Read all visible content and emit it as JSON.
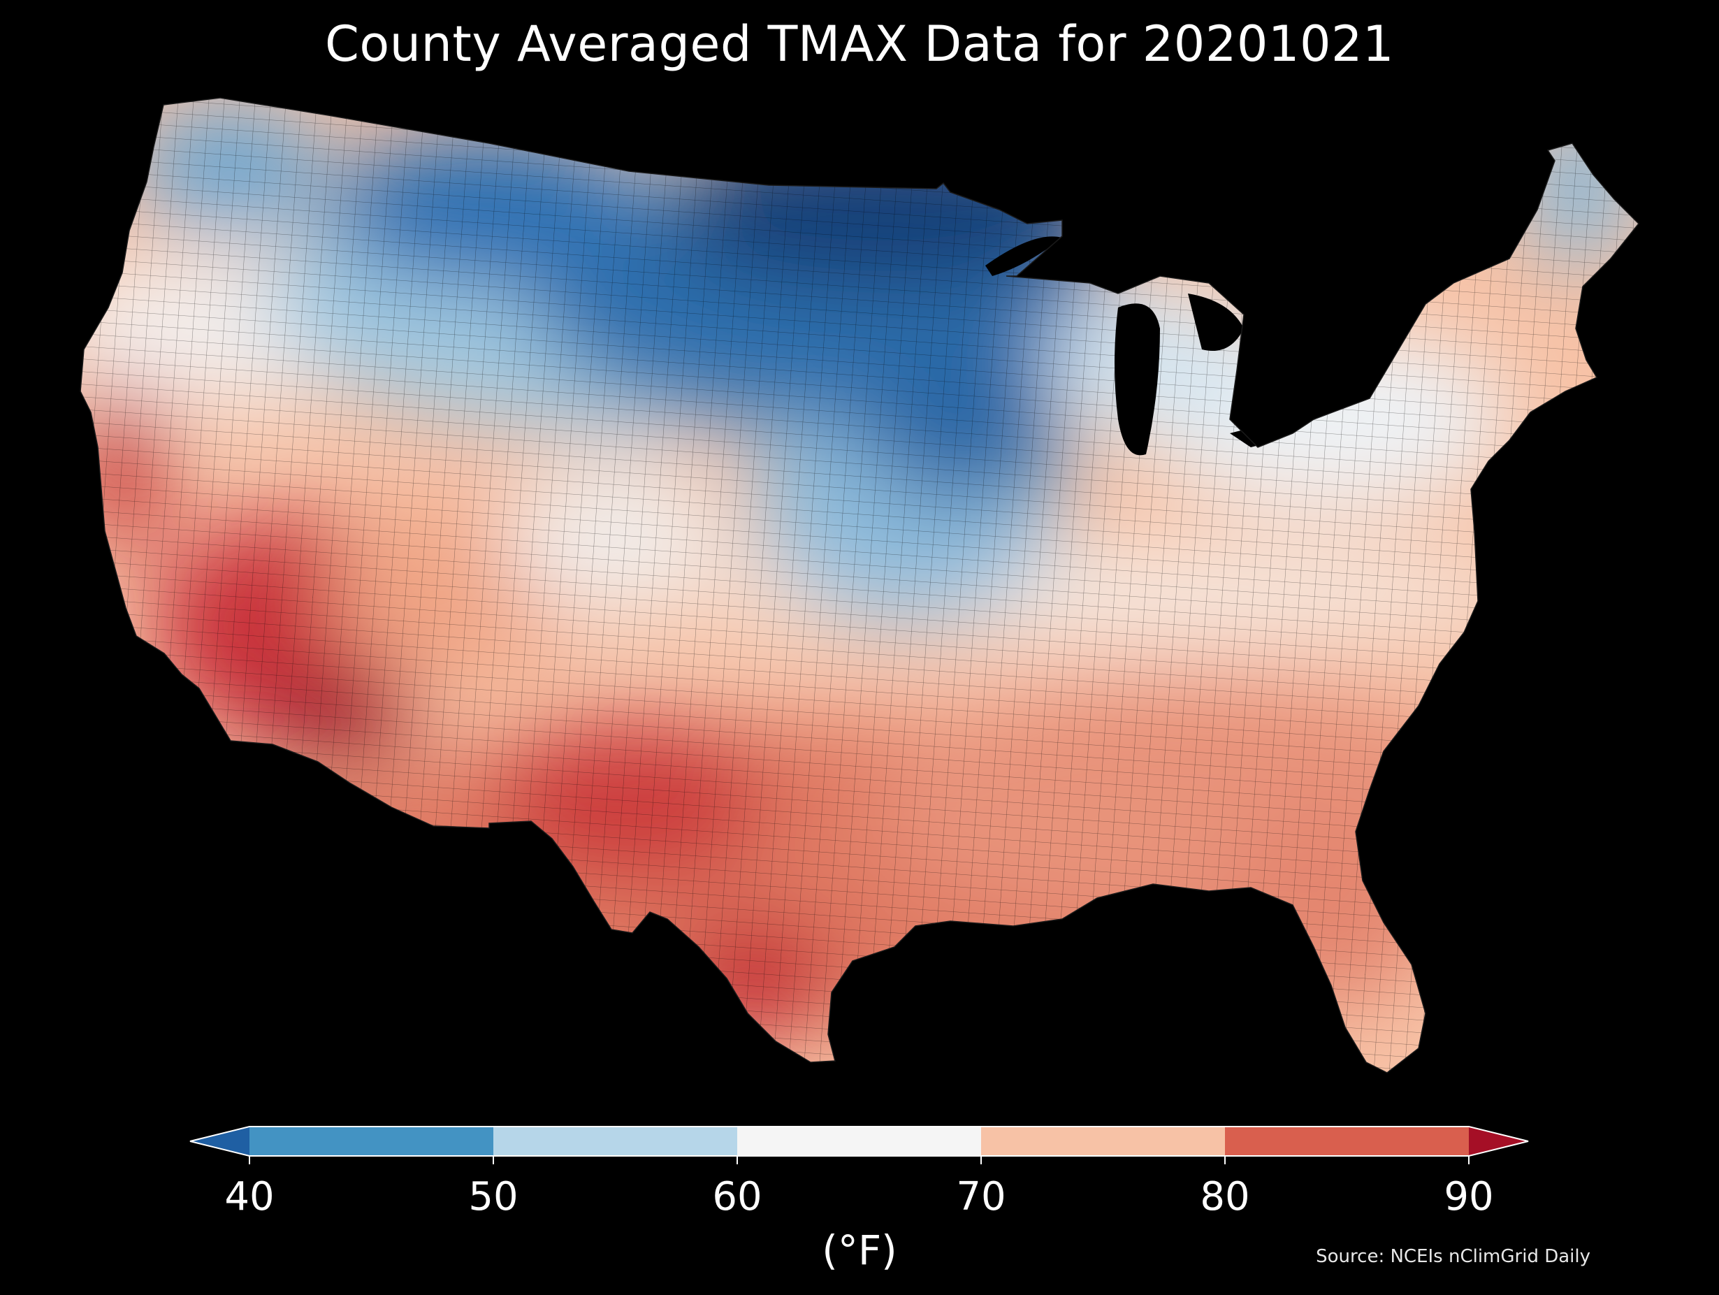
{
  "title": "County Averaged TMAX Data for 20201021",
  "colorbar": {
    "ticks": [
      "40",
      "50",
      "60",
      "70",
      "80",
      "90"
    ],
    "unit_label": "(°F)",
    "bins": [
      {
        "range": [
          40,
          50
        ],
        "color": "#4393c3"
      },
      {
        "range": [
          50,
          60
        ],
        "color": "#b6d6e9"
      },
      {
        "range": [
          60,
          70
        ],
        "color": "#f5f5f5"
      },
      {
        "range": [
          70,
          80
        ],
        "color": "#f7c2a6"
      },
      {
        "range": [
          80,
          90
        ],
        "color": "#d95f4e"
      }
    ],
    "under_color": "#1f5fa3",
    "over_color": "#a50f26",
    "extend": "both"
  },
  "source": "Source: NCEIs nClimGrid Daily",
  "map": {
    "region": "Contiguous United States counties",
    "variable": "TMAX",
    "date": "20201021",
    "palette": [
      "#0b3a6e",
      "#1f5fa3",
      "#4393c3",
      "#b6d6e9",
      "#f5f5f5",
      "#f7c2a6",
      "#d95f4e",
      "#a50f26",
      "#6b0020"
    ],
    "background": "#000000"
  }
}
